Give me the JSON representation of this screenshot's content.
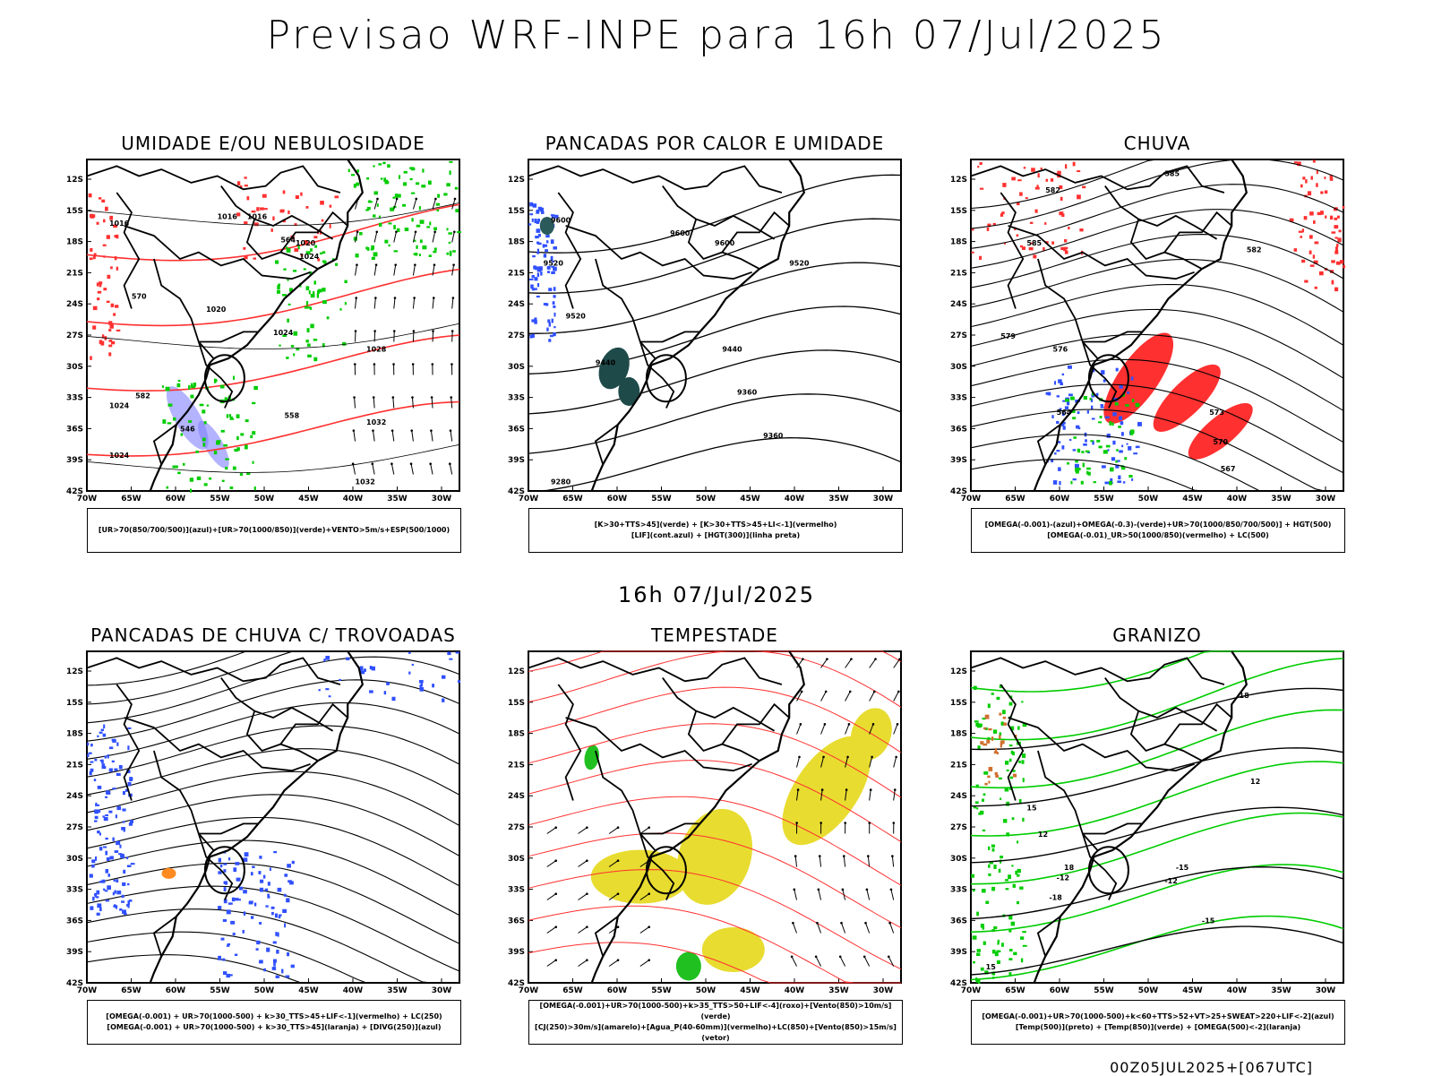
{
  "page": {
    "title": "Previsao WRF-INPE  para 16h 07/Jul/2025",
    "mid_title": "16h 07/Jul/2025",
    "footer": "00Z05JUL2025+[067UTC]"
  },
  "axes": {
    "lat_labels": [
      "12S",
      "15S",
      "18S",
      "21S",
      "24S",
      "27S",
      "30S",
      "33S",
      "36S",
      "39S",
      "42S"
    ],
    "lon_labels": [
      "70W",
      "65W",
      "60W",
      "55W",
      "50W",
      "45W",
      "40W",
      "35W",
      "30W"
    ]
  },
  "panels": [
    {
      "title": "UMIDADE E/OU NEBULOSIDADE",
      "legend": [
        "[UR>70(850/700/500)](azul)+[UR>70(1000/850)](verde)+VENTO>5m/s+ESP(500/1000)"
      ],
      "contour_labels": [
        "1016",
        "1016",
        "1016",
        "1020",
        "1024",
        "1020",
        "1024",
        "1028",
        "1032",
        "1032",
        "1024",
        "1024",
        "582",
        "570",
        "564",
        "546",
        "558"
      ],
      "colors": {
        "contour": "#ff3030",
        "green": "#00cc00",
        "blue": "#8080ff"
      }
    },
    {
      "title": "PANCADAS POR CALOR E UMIDADE",
      "legend": [
        "[K>30+TTS>45](verde) + [K>30+TTS>45+LI<-1](vermelho)",
        "[LIF](cont.azul) + [HGT(300)](linha preta)"
      ],
      "contour_labels": [
        "9600",
        "9600",
        "9600",
        "9520",
        "9520",
        "9440",
        "9440",
        "9360",
        "9360",
        "9280",
        "9520"
      ],
      "colors": {
        "fill": "#1f4a4a",
        "blue": "#3050ff"
      }
    },
    {
      "title": "CHUVA",
      "legend": [
        "[OMEGA(-0.001)-(azul)+OMEGA(-0.3)-(verde)+UR>70(1000/850/700/500)] + HGT(500)",
        "[OMEGA(-0.01)_UR>50(1000/850)(vermelho) + LC(500)"
      ],
      "contour_labels": [
        "585",
        "582",
        "585",
        "579",
        "576",
        "573",
        "570",
        "567",
        "564",
        "582"
      ],
      "colors": {
        "red": "#ff3030",
        "blue": "#3050ff",
        "green": "#00cc00"
      }
    },
    {
      "title": "PANCADAS DE CHUVA C/ TROVOADAS",
      "legend": [
        "[OMEGA(-0.001) + UR>70(1000-500) + k>30_TTS>45+LIF<-1](vermelho) + LC(250)",
        "[OMEGA(-0.001) + UR>70(1000-500) + k>30_TTS>45](laranja) + [DIVG(250)](azul)"
      ],
      "contour_labels": [],
      "colors": {
        "blue": "#3050ff",
        "orange": "#ff8a20"
      }
    },
    {
      "title": "TEMPESTADE",
      "legend": [
        "[OMEGA(-0.001)+UR>70(1000-500)+k>35_TTS>50+LIF<-4](roxo)+[Vento(850)>10m/s](verde)",
        "[CJ(250)>30m/s](amarelo)+[Agua_P(40-60mm)](vermelho)+LC(850)+[Vento(850)>15m/s](vetor)"
      ],
      "contour_labels": [],
      "colors": {
        "yellow": "#e8dc30",
        "red": "#ff3030",
        "green": "#20c020"
      }
    },
    {
      "title": "GRANIZO",
      "legend": [
        "[OMEGA(-0.001)+UR>70(1000-500)+k<60+TTS>52+VT>25+SWEAT>220+LIF<-2](azul)",
        "[Temp(500)](preto) + [Temp(850)](verde) + [OMEGA(500)<-2](laranja)"
      ],
      "contour_labels": [
        "18",
        "12",
        "15",
        "12",
        "18",
        "-12",
        "-15",
        "-18",
        "-12",
        "-15",
        "15"
      ],
      "colors": {
        "green": "#00cc00",
        "orange": "#d07030"
      }
    }
  ]
}
